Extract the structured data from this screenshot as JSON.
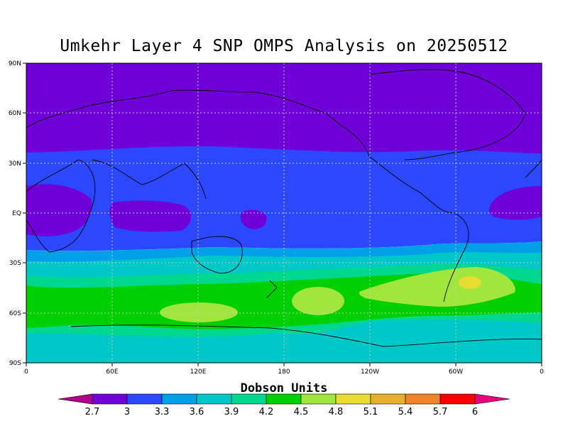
{
  "title": "Umkehr Layer 4 SNP OMPS Analysis on 20250512",
  "map": {
    "lat_labels": [
      "90N",
      "60N",
      "30N",
      "EQ",
      "30S",
      "60S",
      "90S"
    ],
    "lon_labels": [
      "0",
      "60E",
      "120E",
      "180",
      "120W",
      "60W",
      "0"
    ],
    "projection": "cylindrical-equidistant",
    "grid": "dotted",
    "coastlines": true
  },
  "colorbar": {
    "title": "Dobson Units",
    "labels": [
      "2.7",
      "3",
      "3.3",
      "3.6",
      "3.9",
      "4.2",
      "4.5",
      "4.8",
      "5.1",
      "5.4",
      "5.7",
      "6"
    ],
    "colors": [
      "#b0008c",
      "#7000d8",
      "#2c48ff",
      "#00a0e8",
      "#00c8c8",
      "#00d890",
      "#00d000",
      "#a0e63c",
      "#e6dc32",
      "#e6af2d",
      "#f08228",
      "#fa0000",
      "#e8007d"
    ]
  },
  "chart_data": {
    "type": "heatmap",
    "units": "Dobson Units",
    "date": "20250512",
    "levels": [
      2.7,
      3.0,
      3.3,
      3.6,
      3.9,
      4.2,
      4.5,
      4.8,
      5.1,
      5.4,
      5.7,
      6.0
    ],
    "lat_range": [
      -90,
      90
    ],
    "lon_range": [
      0,
      360
    ],
    "zonal_bands": [
      {
        "lat_from": 90,
        "lat_to": 35,
        "range": [
          2.7,
          3.0
        ]
      },
      {
        "lat_from": 35,
        "lat_to": -22,
        "range": [
          3.0,
          3.3
        ]
      },
      {
        "lat_from": -22,
        "lat_to": -28,
        "range": [
          3.3,
          3.6
        ]
      },
      {
        "lat_from": -28,
        "lat_to": -38,
        "range": [
          3.6,
          3.9
        ]
      },
      {
        "lat_from": -38,
        "lat_to": -45,
        "range": [
          3.9,
          4.2
        ]
      },
      {
        "lat_from": -45,
        "lat_to": -65,
        "range": [
          4.2,
          4.5
        ]
      },
      {
        "lat_from": -65,
        "lat_to": -75,
        "range": [
          3.9,
          4.2
        ]
      },
      {
        "lat_from": -75,
        "lat_to": -90,
        "range": [
          3.6,
          3.9
        ]
      }
    ],
    "features": [
      {
        "kind": "low",
        "lat": 3,
        "lon": 30,
        "range": [
          2.7,
          3.0
        ]
      },
      {
        "kind": "low",
        "lat": 0,
        "lon": 110,
        "range": [
          2.7,
          3.0
        ]
      },
      {
        "kind": "low",
        "lat": 3,
        "lon": 340,
        "range": [
          2.7,
          3.0
        ]
      },
      {
        "kind": "high",
        "lat": -58,
        "lon": 120,
        "range": [
          4.5,
          4.8
        ]
      },
      {
        "kind": "high",
        "lat": -53,
        "lon": 187,
        "range": [
          4.5,
          4.8
        ]
      },
      {
        "kind": "high",
        "lat": -47,
        "lon": 305,
        "range": [
          4.5,
          4.8
        ]
      },
      {
        "kind": "high",
        "lat": -42,
        "lon": 313,
        "range": [
          4.8,
          5.1
        ]
      }
    ]
  }
}
